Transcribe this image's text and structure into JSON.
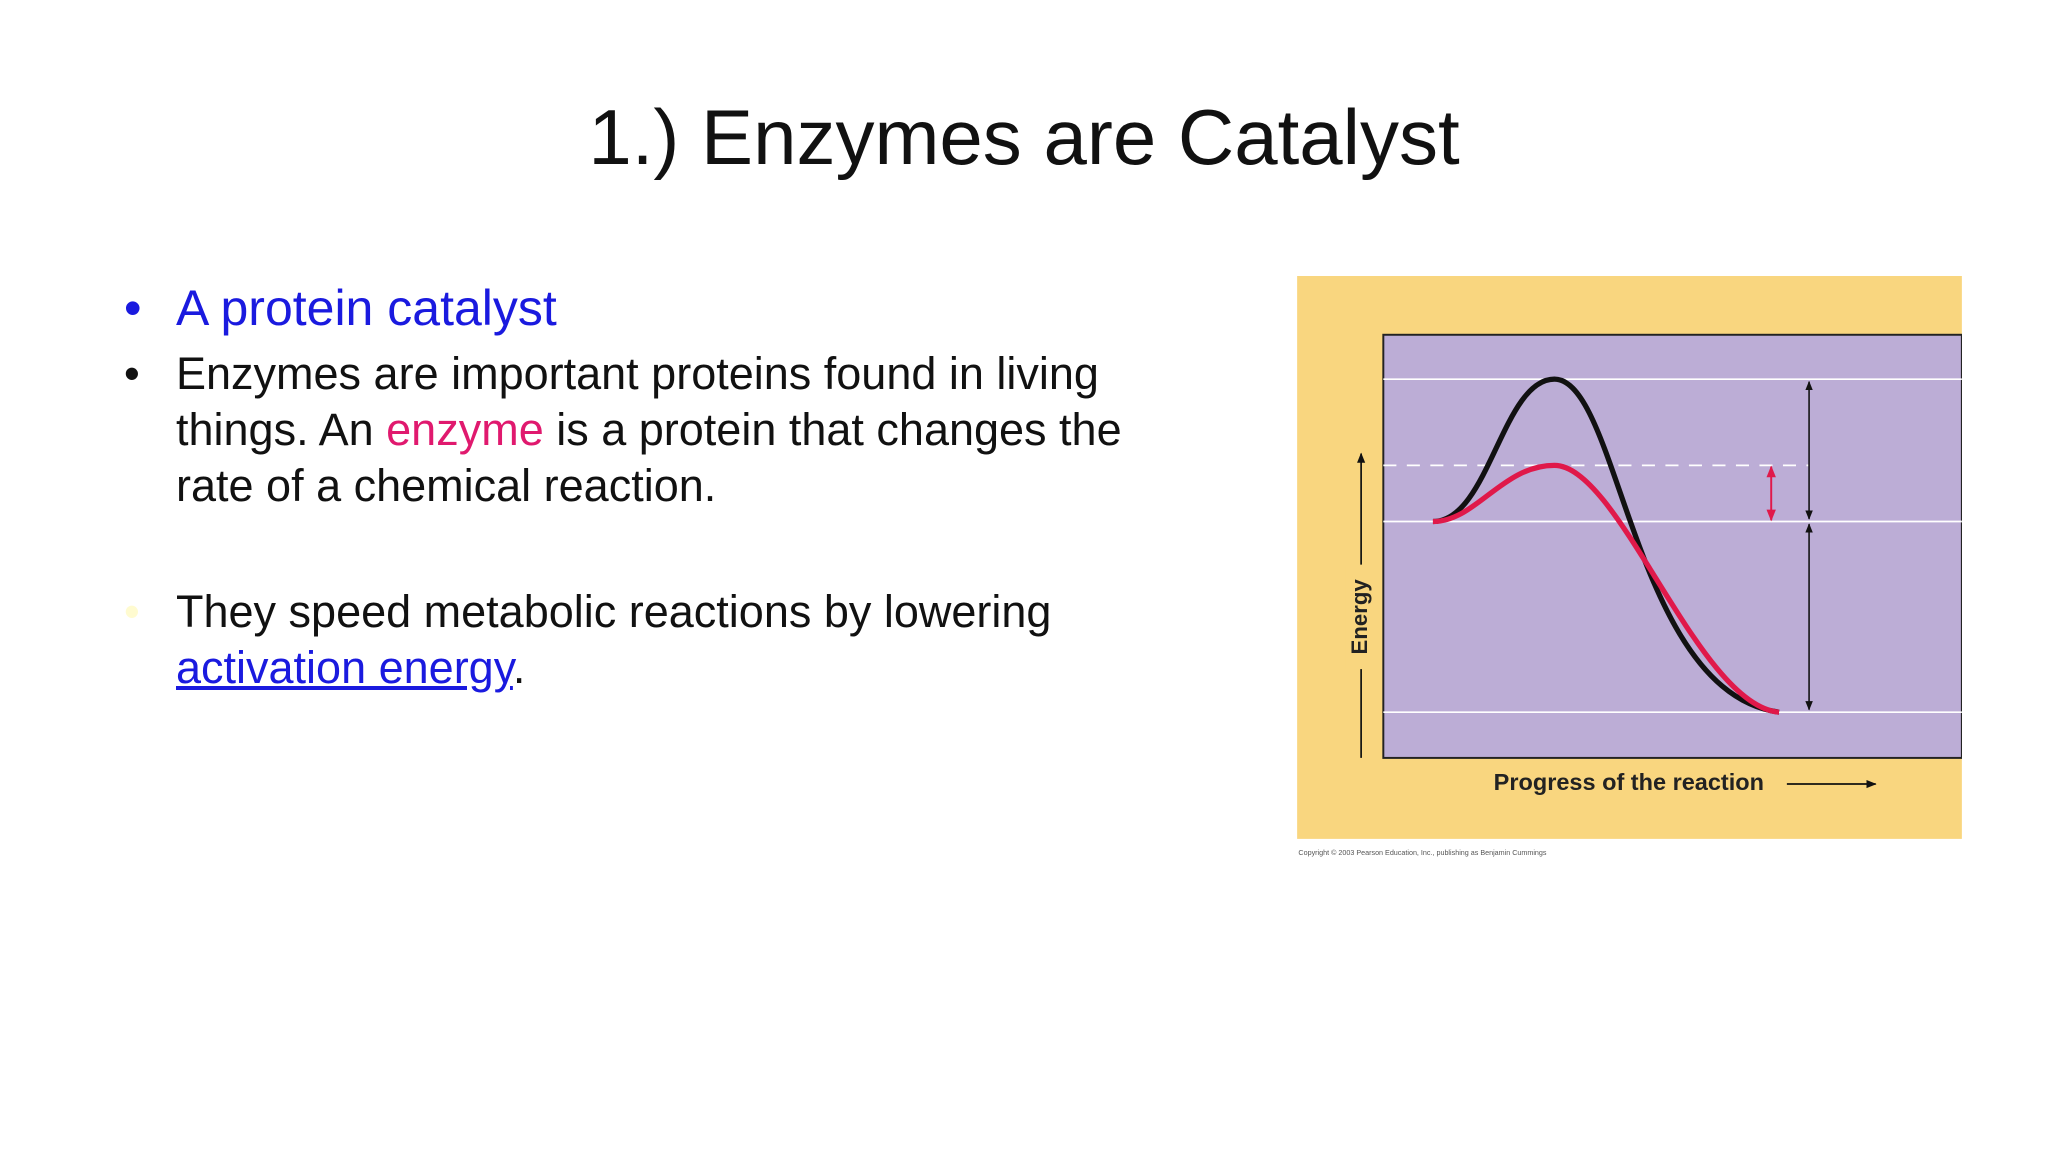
{
  "title": "1.) Enzymes are Catalyst",
  "bullets": [
    {
      "segments": [
        "A protein catalyst"
      ]
    },
    {
      "segments": [
        "Enzymes are important proteins found in living things.  An ",
        "enzyme",
        " is a protein that changes the rate of a chemical reaction."
      ]
    },
    {
      "segments": [
        "They speed metabolic reactions by lowering ",
        "activation energy",
        "."
      ]
    }
  ],
  "figure": {
    "y_label": "Energy",
    "x_label": "Progress of the reaction",
    "credit": "Copyright © 2003 Pearson Education, Inc., publishing as Benjamin Cummings"
  }
}
